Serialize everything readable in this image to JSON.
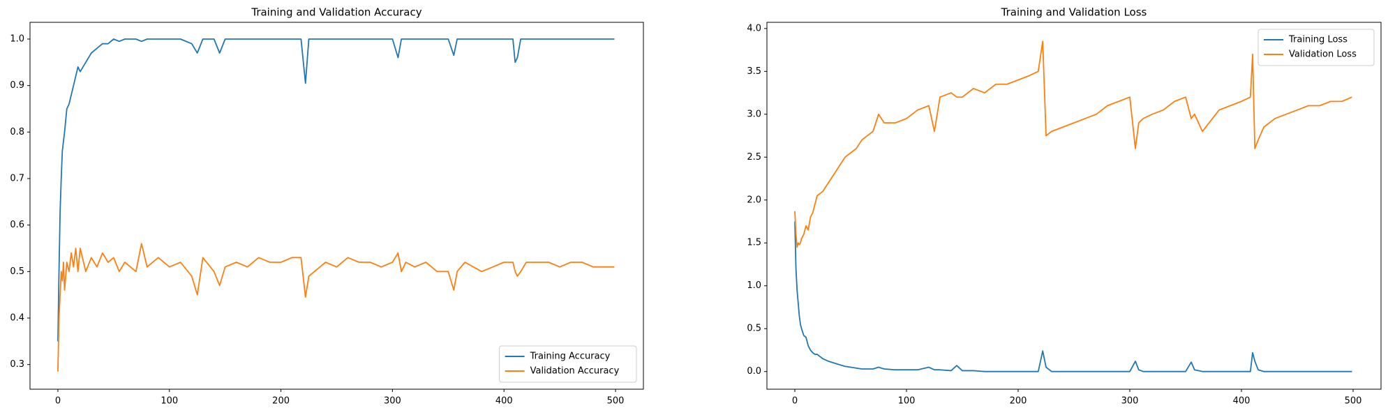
{
  "chart_data": [
    {
      "type": "line",
      "title": "Training and Validation Accuracy",
      "x": [
        0,
        1,
        2,
        3,
        4,
        5,
        6,
        8,
        10,
        12,
        14,
        16,
        18,
        20,
        25,
        30,
        35,
        40,
        45,
        50,
        55,
        60,
        70,
        75,
        80,
        90,
        100,
        110,
        120,
        125,
        130,
        140,
        145,
        150,
        160,
        170,
        180,
        190,
        200,
        210,
        218,
        222,
        225,
        230,
        240,
        250,
        260,
        270,
        280,
        290,
        300,
        305,
        308,
        312,
        320,
        330,
        340,
        350,
        355,
        358,
        365,
        380,
        390,
        400,
        408,
        410,
        412,
        415,
        420,
        430,
        440,
        450,
        460,
        470,
        480,
        490,
        499
      ],
      "series": [
        {
          "name": "Training Accuracy",
          "color": "#1f77b4",
          "values": [
            0.35,
            0.5,
            0.63,
            0.7,
            0.76,
            0.78,
            0.8,
            0.85,
            0.86,
            0.88,
            0.9,
            0.92,
            0.94,
            0.93,
            0.95,
            0.97,
            0.98,
            0.99,
            0.99,
            1,
            0.995,
            1,
            1,
            0.995,
            1,
            1,
            1,
            1,
            0.99,
            0.97,
            1,
            1,
            0.97,
            1,
            1,
            1,
            1,
            1,
            1,
            1,
            1,
            0.905,
            1,
            1,
            1,
            1,
            1,
            1,
            1,
            1,
            1,
            0.96,
            1,
            1,
            1,
            1,
            1,
            1,
            0.965,
            1,
            1,
            1,
            1,
            1,
            1,
            0.95,
            0.96,
            1,
            1,
            1,
            1,
            1,
            1,
            1,
            1,
            1,
            1
          ]
        },
        {
          "name": "Validation Accuracy",
          "color": "#ff7f0e",
          "values": [
            0.285,
            0.4,
            0.45,
            0.5,
            0.48,
            0.52,
            0.46,
            0.52,
            0.5,
            0.54,
            0.51,
            0.55,
            0.5,
            0.55,
            0.5,
            0.53,
            0.51,
            0.54,
            0.52,
            0.53,
            0.5,
            0.52,
            0.5,
            0.56,
            0.51,
            0.53,
            0.51,
            0.52,
            0.49,
            0.45,
            0.53,
            0.5,
            0.47,
            0.51,
            0.52,
            0.51,
            0.53,
            0.52,
            0.52,
            0.53,
            0.53,
            0.445,
            0.49,
            0.5,
            0.52,
            0.51,
            0.53,
            0.52,
            0.52,
            0.51,
            0.52,
            0.54,
            0.5,
            0.52,
            0.51,
            0.52,
            0.5,
            0.5,
            0.46,
            0.5,
            0.52,
            0.5,
            0.51,
            0.52,
            0.52,
            0.5,
            0.49,
            0.5,
            0.52,
            0.52,
            0.52,
            0.51,
            0.52,
            0.52,
            0.51,
            0.51,
            0.51
          ]
        }
      ],
      "xlim": [
        -25,
        525
      ],
      "xticks": [
        0,
        100,
        200,
        300,
        400,
        500
      ],
      "ylim": [
        0.247,
        1.036
      ],
      "yticks": [
        0.3,
        0.4,
        0.5,
        0.6,
        0.7,
        0.8,
        0.9,
        {
          "value": 1,
          "label": "1.0"
        }
      ],
      "legend": "lower right"
    },
    {
      "type": "line",
      "title": "Training and Validation Loss",
      "x": [
        0,
        1,
        2,
        3,
        4,
        5,
        6,
        8,
        10,
        12,
        14,
        16,
        18,
        20,
        25,
        30,
        35,
        40,
        45,
        50,
        55,
        60,
        70,
        75,
        80,
        90,
        100,
        110,
        120,
        125,
        130,
        140,
        145,
        150,
        160,
        170,
        180,
        190,
        200,
        210,
        218,
        222,
        225,
        230,
        240,
        250,
        260,
        270,
        280,
        290,
        300,
        305,
        308,
        312,
        320,
        330,
        340,
        350,
        355,
        358,
        365,
        380,
        390,
        400,
        408,
        410,
        412,
        415,
        420,
        430,
        440,
        450,
        460,
        470,
        480,
        490,
        499
      ],
      "series": [
        {
          "name": "Training Loss",
          "color": "#1f77b4",
          "values": [
            1.75,
            1.2,
            0.95,
            0.8,
            0.65,
            0.55,
            0.5,
            0.42,
            0.4,
            0.3,
            0.25,
            0.22,
            0.2,
            0.2,
            0.15,
            0.12,
            0.1,
            0.08,
            0.06,
            0.05,
            0.04,
            0.03,
            0.03,
            0.05,
            0.03,
            0.02,
            0.02,
            0.02,
            0.05,
            0.02,
            0.02,
            0.01,
            0.07,
            0.01,
            0.01,
            0,
            0,
            0,
            0,
            0,
            0,
            0.24,
            0.05,
            0,
            0,
            0,
            0,
            0,
            0,
            0,
            0,
            0.12,
            0.02,
            0,
            0,
            0,
            0,
            0,
            0.11,
            0.02,
            0,
            0,
            0,
            0,
            0,
            0.22,
            0.12,
            0.02,
            0,
            0,
            0,
            0,
            0,
            0,
            0,
            0,
            0
          ]
        },
        {
          "name": "Validation Loss",
          "color": "#ff7f0e",
          "values": [
            1.87,
            1.6,
            1.45,
            1.5,
            1.48,
            1.5,
            1.55,
            1.6,
            1.7,
            1.65,
            1.8,
            1.85,
            1.95,
            2.05,
            2.1,
            2.2,
            2.3,
            2.4,
            2.5,
            2.55,
            2.6,
            2.7,
            2.8,
            3.0,
            2.9,
            2.9,
            2.95,
            3.05,
            3.1,
            2.8,
            3.2,
            3.25,
            3.2,
            3.2,
            3.3,
            3.25,
            3.35,
            3.35,
            3.4,
            3.45,
            3.5,
            3.85,
            2.75,
            2.8,
            2.85,
            2.9,
            2.95,
            3.0,
            3.1,
            3.15,
            3.2,
            2.6,
            2.9,
            2.95,
            3.0,
            3.05,
            3.15,
            3.2,
            2.95,
            3.0,
            2.8,
            3.05,
            3.1,
            3.15,
            3.2,
            3.7,
            2.6,
            2.7,
            2.85,
            2.95,
            3.0,
            3.05,
            3.1,
            3.1,
            3.15,
            3.15,
            3.2
          ]
        }
      ],
      "xlim": [
        -25,
        525
      ],
      "xticks": [
        0,
        100,
        200,
        300,
        400,
        500
      ],
      "ylim": [
        -0.206,
        4.072
      ],
      "yticks": [
        {
          "value": 0,
          "label": "0.0"
        },
        0.5,
        {
          "value": 1,
          "label": "1.0"
        },
        1.5,
        {
          "value": 2,
          "label": "2.0"
        },
        2.5,
        {
          "value": 3,
          "label": "3.0"
        },
        3.5,
        {
          "value": 4,
          "label": "4.0"
        }
      ],
      "legend": "upper right"
    }
  ]
}
